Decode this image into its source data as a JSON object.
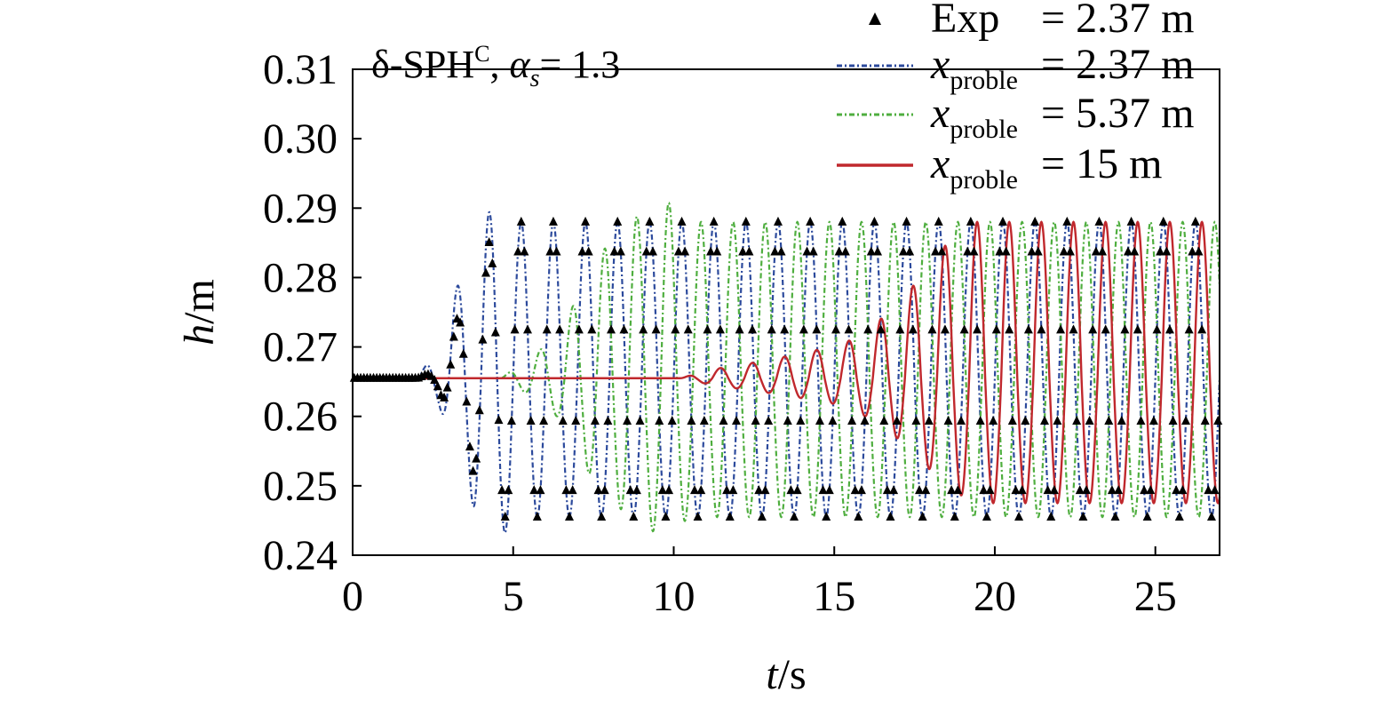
{
  "chart_data": {
    "type": "line",
    "annotation": {
      "prefix": "δ-SPH",
      "sup": "C",
      "sep": ", ",
      "var": "α",
      "var_sub": "s",
      "suffix": "= 1.3"
    },
    "xlabel": {
      "var": "t",
      "unit": "/s"
    },
    "ylabel": {
      "var": "h",
      "unit": "/m"
    },
    "xlim": [
      0,
      27
    ],
    "ylim": [
      0.24,
      0.31
    ],
    "xticks": [
      0,
      5,
      10,
      15,
      20,
      25
    ],
    "yticks": [
      "0.24",
      "0.25",
      "0.26",
      "0.27",
      "0.28",
      "0.29",
      "0.30",
      "0.31"
    ],
    "grid": false,
    "legend_position": "top-right",
    "legend": [
      {
        "marker": "triangle",
        "color": "#000000",
        "name": "Exp",
        "var": "",
        "sub": "",
        "value": "= 2.37 m"
      },
      {
        "marker": "dashdot",
        "color": "#2c4a9c",
        "name": "",
        "var": "x",
        "sub": "proble",
        "value": "= 2.37 m"
      },
      {
        "marker": "dashdot",
        "color": "#4fae3f",
        "name": "",
        "var": "x",
        "sub": "proble",
        "value": "= 5.37 m"
      },
      {
        "marker": "solid",
        "color": "#c0282d",
        "name": "",
        "var": "x",
        "sub": "proble",
        "value": "= 15 m"
      }
    ],
    "series": [
      {
        "style": "markers",
        "color": "#000000",
        "baseline": 0.2655,
        "onset": 2.0,
        "period": 1.0,
        "ramp": [
          [
            2.0,
            0.0
          ],
          [
            2.6,
            0.05
          ],
          [
            3.2,
            0.35
          ],
          [
            3.8,
            0.7
          ],
          [
            4.6,
            1.0
          ],
          [
            27,
            1.0
          ]
        ],
        "crest": 0.288,
        "trough": 0.2455,
        "sample_step": 0.1
      },
      {
        "style": "dashdot",
        "color": "#2c4a9c",
        "baseline": 0.2655,
        "onset": 2.0,
        "period": 1.0,
        "ramp": [
          [
            2.0,
            0.0
          ],
          [
            2.7,
            0.2
          ],
          [
            3.2,
            0.55
          ],
          [
            3.8,
            0.95
          ],
          [
            4.6,
            1.15
          ],
          [
            5.2,
            1.0
          ],
          [
            27,
            1.0
          ]
        ],
        "crest": 0.288,
        "trough": 0.2455
      },
      {
        "style": "dashdot",
        "color": "#4fae3f",
        "baseline": 0.2655,
        "onset": 4.6,
        "period": 1.0,
        "ramp": [
          [
            4.6,
            0.0
          ],
          [
            5.5,
            0.12
          ],
          [
            6.5,
            0.3
          ],
          [
            7.5,
            0.75
          ],
          [
            8.6,
            1.0
          ],
          [
            9.7,
            1.15
          ],
          [
            10.5,
            1.0
          ],
          [
            27,
            1.0
          ]
        ],
        "crest": 0.288,
        "trough": 0.2455
      },
      {
        "style": "solid",
        "color": "#c0282d",
        "baseline": 0.2655,
        "onset": 10.2,
        "period": 1.0,
        "ramp": [
          [
            10.2,
            0.0
          ],
          [
            11.3,
            0.06
          ],
          [
            12.5,
            0.1
          ],
          [
            14.0,
            0.16
          ],
          [
            15.3,
            0.22
          ],
          [
            16.3,
            0.35
          ],
          [
            17.3,
            0.55
          ],
          [
            18.3,
            0.82
          ],
          [
            19.3,
            1.0
          ],
          [
            27,
            1.0
          ]
        ],
        "crest": 0.288,
        "trough": 0.2475
      }
    ]
  }
}
